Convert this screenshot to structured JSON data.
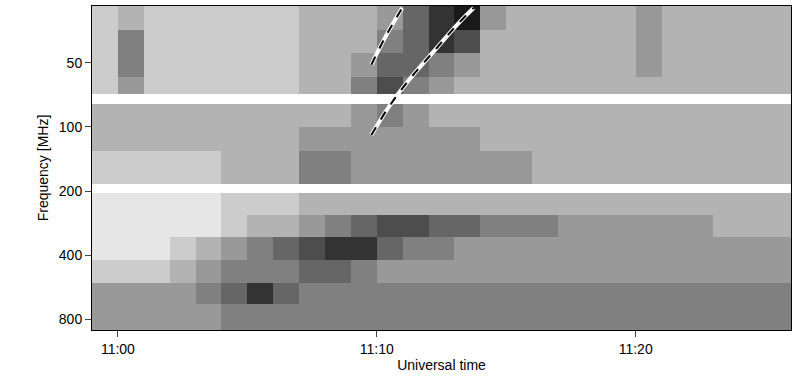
{
  "chart_data": {
    "type": "heatmap",
    "x_label": "Universal time",
    "y_label": "Frequency [MHz]",
    "log": "y",
    "grid": false,
    "xlim": [
      659,
      686
    ],
    "xticks": [
      {
        "value": 660,
        "label": "11:00"
      },
      {
        "value": 670,
        "label": "11:10"
      },
      {
        "value": 680,
        "label": "11:20"
      }
    ],
    "ylim": [
      900,
      27
    ],
    "yticks": [
      50,
      100,
      200,
      400,
      800
    ],
    "time_bins": [
      659,
      660,
      661,
      662,
      663,
      664,
      665,
      666,
      667,
      668,
      669,
      670,
      671,
      672,
      673,
      674,
      675,
      676,
      677,
      678,
      679,
      680,
      681,
      682,
      683,
      684,
      685,
      686
    ],
    "frequency_bins": [
      27,
      35,
      45,
      58,
      70,
      78,
      100,
      130,
      185,
      205,
      260,
      330,
      420,
      540,
      680,
      900
    ],
    "zlim": [
      0,
      10
    ],
    "colors": [
      "#ffffff",
      "#000000"
    ],
    "cells": [
      [
        2,
        3,
        2,
        2,
        2,
        2,
        2,
        2,
        3,
        3,
        3,
        4,
        6,
        8,
        9,
        4,
        3,
        3,
        3,
        3,
        3,
        4,
        3,
        3,
        3,
        3,
        3
      ],
      [
        2,
        5,
        2,
        2,
        2,
        2,
        2,
        2,
        3,
        3,
        3,
        5,
        6,
        8,
        7,
        3,
        3,
        3,
        3,
        3,
        3,
        4,
        3,
        3,
        3,
        3,
        3
      ],
      [
        2,
        5,
        2,
        2,
        2,
        2,
        2,
        2,
        3,
        3,
        4,
        6,
        6,
        5,
        4,
        3,
        3,
        3,
        3,
        3,
        3,
        4,
        3,
        3,
        3,
        3,
        3
      ],
      [
        2,
        4,
        2,
        2,
        2,
        2,
        2,
        2,
        3,
        3,
        5,
        7,
        5,
        4,
        3,
        3,
        3,
        3,
        3,
        3,
        3,
        3,
        3,
        3,
        3,
        3,
        3
      ],
      [
        null,
        null,
        null,
        null,
        null,
        null,
        null,
        null,
        null,
        null,
        null,
        null,
        null,
        null,
        null,
        null,
        null,
        null,
        null,
        null,
        null,
        null,
        null,
        null,
        null,
        null,
        null
      ],
      [
        3,
        3,
        3,
        3,
        3,
        3,
        3,
        3,
        3,
        3,
        4,
        5,
        4,
        3,
        3,
        3,
        3,
        3,
        3,
        3,
        3,
        3,
        3,
        3,
        3,
        3,
        3
      ],
      [
        3,
        3,
        3,
        3,
        3,
        3,
        3,
        3,
        4,
        4,
        4,
        4,
        4,
        4,
        4,
        3,
        3,
        3,
        3,
        3,
        3,
        3,
        3,
        3,
        3,
        3,
        3
      ],
      [
        2,
        2,
        2,
        2,
        2,
        3,
        3,
        3,
        5,
        5,
        4,
        4,
        4,
        4,
        4,
        4,
        4,
        3,
        3,
        3,
        3,
        3,
        3,
        3,
        3,
        3,
        3
      ],
      [
        null,
        null,
        null,
        null,
        null,
        null,
        null,
        null,
        null,
        null,
        null,
        null,
        null,
        null,
        null,
        null,
        null,
        null,
        null,
        null,
        null,
        null,
        null,
        null,
        null,
        null,
        null
      ],
      [
        1,
        1,
        1,
        1,
        1,
        2,
        2,
        2,
        3,
        3,
        3,
        3,
        3,
        3,
        3,
        3,
        3,
        3,
        3,
        3,
        3,
        3,
        3,
        3,
        3,
        3,
        3
      ],
      [
        1,
        1,
        1,
        1,
        1,
        2,
        3,
        3,
        4,
        5,
        6,
        7,
        7,
        6,
        6,
        5,
        5,
        5,
        4,
        4,
        4,
        4,
        4,
        4,
        3,
        3,
        3
      ],
      [
        1,
        1,
        1,
        2,
        3,
        4,
        5,
        6,
        7,
        8,
        8,
        6,
        5,
        5,
        4,
        4,
        4,
        4,
        4,
        4,
        4,
        4,
        4,
        4,
        4,
        4,
        4
      ],
      [
        2,
        2,
        2,
        3,
        4,
        5,
        5,
        5,
        6,
        6,
        5,
        4,
        4,
        4,
        4,
        4,
        4,
        4,
        4,
        4,
        4,
        4,
        4,
        4,
        4,
        4,
        4
      ],
      [
        4,
        4,
        4,
        4,
        5,
        6,
        8,
        6,
        5,
        5,
        5,
        5,
        5,
        5,
        5,
        5,
        5,
        5,
        5,
        5,
        5,
        5,
        5,
        5,
        5,
        5,
        5
      ],
      [
        4,
        4,
        4,
        4,
        4,
        5,
        5,
        5,
        5,
        5,
        5,
        5,
        5,
        5,
        5,
        5,
        5,
        5,
        5,
        5,
        5,
        5,
        5,
        5,
        5,
        5,
        5
      ]
    ],
    "curves": [
      {
        "x": [
          669.79,
          670.36,
          670.98
        ],
        "y": [
          51,
          37.2,
          27.6
        ],
        "color": "#000000",
        "line_style": "dashed"
      },
      {
        "x": [
          669.79,
          670.48,
          671.25,
          672.21,
          673.17,
          673.74
        ],
        "y": [
          109,
          80,
          60,
          44,
          32.4,
          27.6
        ],
        "color": "#000000",
        "line_style": "dashed"
      }
    ]
  }
}
